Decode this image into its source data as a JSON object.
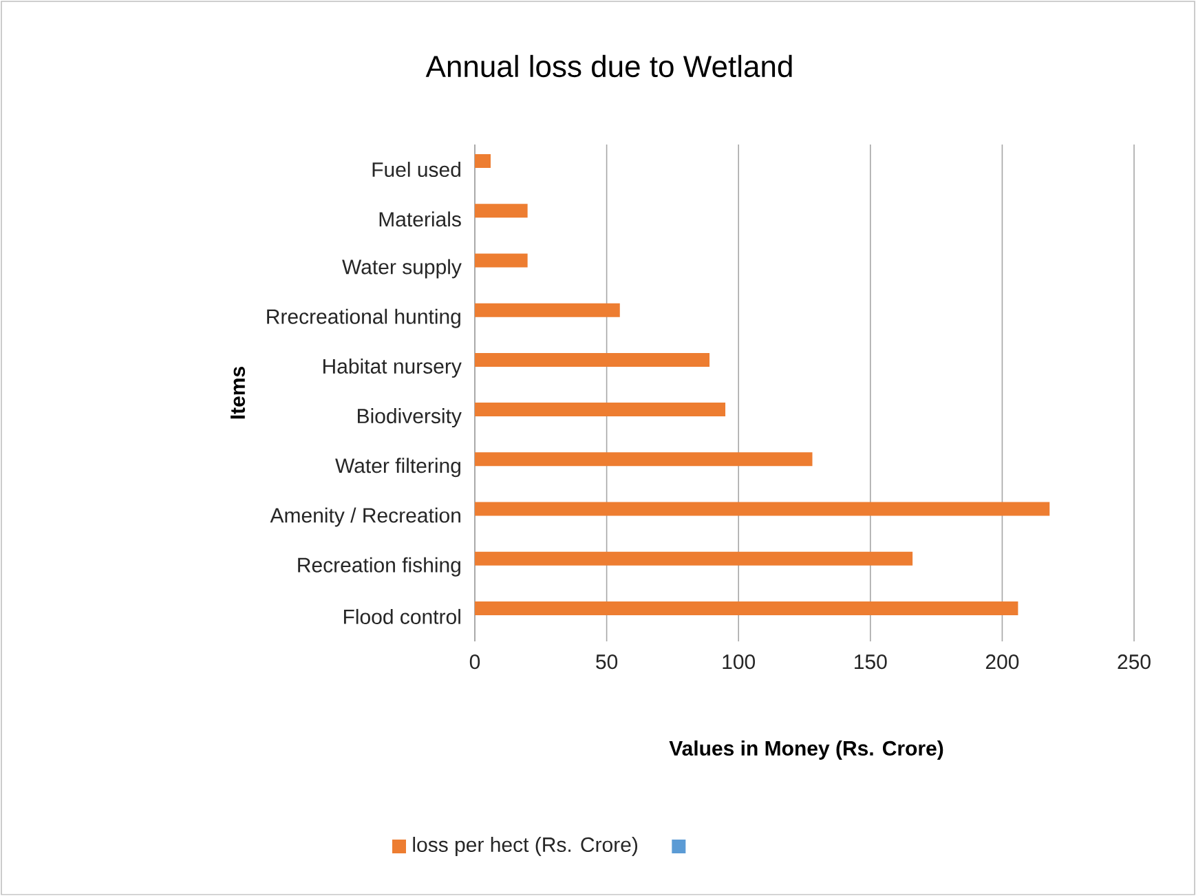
{
  "chart_data": {
    "type": "bar",
    "orientation": "horizontal",
    "title": "Annual loss due to Wetland",
    "xlabel": "Values in Money (Rs. Crore)",
    "ylabel": "Items",
    "categories": [
      "Fuel used",
      "Materials",
      "Water supply",
      "Rrecreational hunting",
      "Habitat nursery",
      "Biodiversity",
      "Water filtering",
      "Amenity / Recreation",
      "Recreation fishing",
      "Flood control"
    ],
    "series": [
      {
        "name": "loss per hect (Rs. Crore)",
        "color": "#ed7d31",
        "values": [
          6,
          20,
          20,
          55,
          89,
          95,
          128,
          218,
          166,
          206
        ]
      },
      {
        "color": "#5b9bd5",
        "values": [
          null,
          null,
          null,
          null,
          null,
          null,
          null,
          null,
          null,
          null
        ]
      }
    ],
    "xlim": [
      0,
      250
    ],
    "xticks": [
      0,
      50,
      100,
      150,
      200,
      250
    ],
    "grid": "x",
    "legend": "bottom"
  }
}
